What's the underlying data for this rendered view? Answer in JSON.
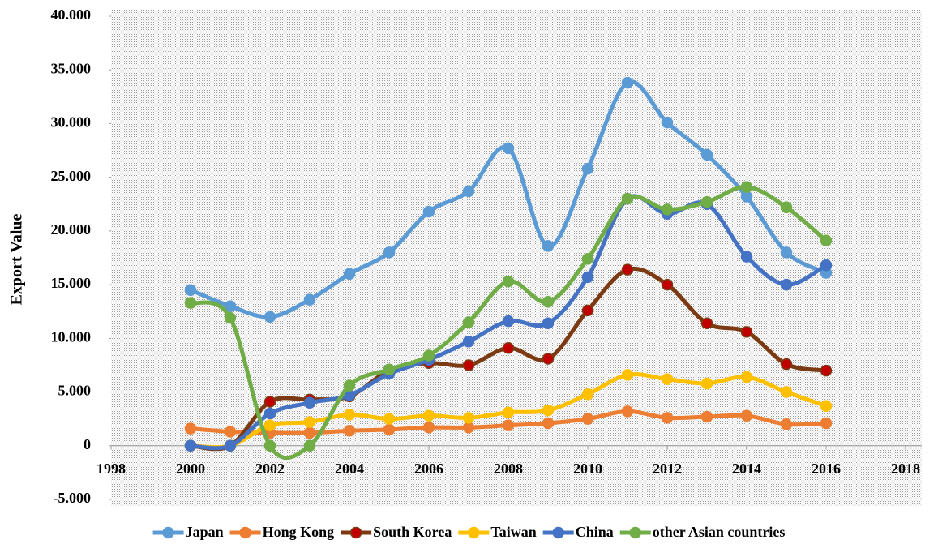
{
  "chart_data": {
    "type": "line",
    "y_label": "Export Value",
    "x": [
      2000,
      2001,
      2002,
      2003,
      2004,
      2005,
      2006,
      2007,
      2008,
      2009,
      2010,
      2011,
      2012,
      2013,
      2014,
      2015,
      2016
    ],
    "series": [
      {
        "name": "Japan",
        "color": "#5b9bd5",
        "values": [
          14500,
          13000,
          12000,
          13600,
          16000,
          18000,
          21800,
          23700,
          27700,
          18600,
          25800,
          33800,
          30100,
          27100,
          23200,
          18000,
          16100
        ]
      },
      {
        "name": "Hong Kong",
        "color": "#ed7d31",
        "values": [
          1600,
          1300,
          1200,
          1200,
          1400,
          1500,
          1700,
          1700,
          1900,
          2100,
          2500,
          3200,
          2600,
          2700,
          2800,
          2000,
          2100
        ]
      },
      {
        "name": "South Korea",
        "color": "#7b3a12",
        "marker_fill": "#c00000",
        "values": [
          0,
          0,
          4100,
          4300,
          4600,
          7000,
          7700,
          7500,
          9100,
          8100,
          12600,
          16400,
          15000,
          11400,
          10600,
          7600,
          7000
        ]
      },
      {
        "name": "Taiwan",
        "color": "#ffc000",
        "values": [
          0,
          0,
          1900,
          2200,
          2900,
          2500,
          2800,
          2600,
          3100,
          3300,
          4800,
          6600,
          6200,
          5800,
          6400,
          5000,
          3700
        ]
      },
      {
        "name": "China",
        "color": "#4472c4",
        "values": [
          0,
          0,
          3000,
          4000,
          4700,
          6700,
          8000,
          9700,
          11600,
          11400,
          15700,
          23000,
          21600,
          22500,
          17600,
          15000,
          16800
        ]
      },
      {
        "name": "other Asian countries",
        "color": "#70ad47",
        "values": [
          13300,
          11900,
          0,
          0,
          5600,
          7100,
          8400,
          11500,
          15300,
          13400,
          17400,
          23000,
          22000,
          22700,
          24100,
          22200,
          19100
        ]
      }
    ],
    "xlim": [
      1998,
      2018
    ],
    "xticks": [
      1998,
      2000,
      2002,
      2004,
      2006,
      2008,
      2010,
      2012,
      2014,
      2016,
      2018
    ],
    "ylim": [
      -5000,
      40000
    ],
    "yticks": [
      {
        "value": -5000,
        "label": "-5.000"
      },
      0,
      {
        "value": 5000,
        "label": "5.000"
      },
      {
        "value": 10000,
        "label": "10.000"
      },
      {
        "value": 15000,
        "label": "15.000"
      },
      {
        "value": 20000,
        "label": "20.000"
      },
      {
        "value": 25000,
        "label": "25.000"
      },
      {
        "value": 30000,
        "label": "30.000"
      },
      {
        "value": 35000,
        "label": "35.000"
      },
      {
        "value": 40000,
        "label": "40.000"
      }
    ],
    "smooth": true,
    "legend": "bottom"
  }
}
